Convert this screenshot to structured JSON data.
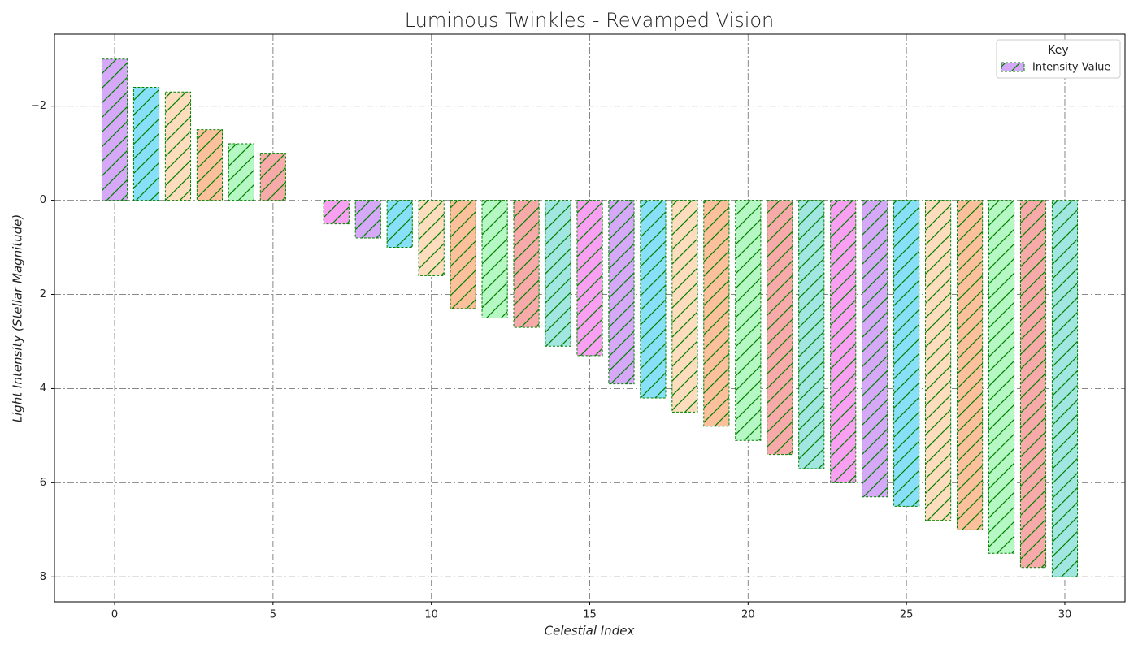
{
  "chart_data": {
    "type": "bar",
    "title": "Luminous Twinkles - Revamped Vision",
    "x_label": "Celestial Index",
    "y_label": "Light Intensity (Stellar Magnitude)",
    "x": [
      0,
      1,
      2,
      3,
      4,
      5,
      6,
      7,
      8,
      9,
      10,
      11,
      12,
      13,
      14,
      15,
      16,
      17,
      18,
      19,
      20,
      21,
      22,
      23,
      24,
      25,
      26,
      27,
      28,
      29,
      30
    ],
    "series": [
      {
        "name": "Intensity Value",
        "values": [
          -3.0,
          -2.4,
          -2.3,
          -1.5,
          -1.2,
          -1.0,
          0,
          0.5,
          0.8,
          1.0,
          1.6,
          2.3,
          2.5,
          2.7,
          3.1,
          3.3,
          3.9,
          4.2,
          4.5,
          4.8,
          5.1,
          5.4,
          5.7,
          6.0,
          6.3,
          6.5,
          6.8,
          7.0,
          7.5,
          7.8,
          8.0
        ],
        "colors": [
          "#d6a8f8",
          "#87e0f7",
          "#fdddbd",
          "#fcc19c",
          "#b6f8c3",
          "#f8aaaa",
          "#a2e6e2",
          "#f9a0f2"
        ],
        "edgecolor": "#008000"
      }
    ],
    "xlim": [
      -1.9,
      31.9
    ],
    "xticks": [
      0,
      5,
      10,
      15,
      20,
      25,
      30
    ],
    "ylim": [
      -3.53,
      8.53
    ],
    "y_inverted": true,
    "yticks": [
      {
        "value": -2,
        "label": "−2"
      },
      0,
      2,
      4,
      6,
      8
    ],
    "grid": true,
    "legend_title": "Key",
    "legend": "upper right"
  }
}
